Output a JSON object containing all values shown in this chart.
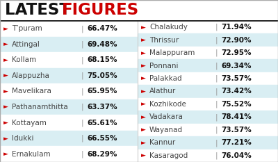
{
  "title_latest": "LATEST ",
  "title_figures": "FIGURES",
  "header_bg": "#ffffff",
  "left_col": [
    {
      "name": "T’puram",
      "value": "66.47%"
    },
    {
      "name": "Attingal",
      "value": "69.48%"
    },
    {
      "name": "Kollam",
      "value": "68.15%"
    },
    {
      "name": "Alappuzha",
      "value": "75.05%"
    },
    {
      "name": "Mavelikara",
      "value": "65.95%"
    },
    {
      "name": "Pathanamthitta",
      "value": "63.37%"
    },
    {
      "name": "Kottayam",
      "value": "65.61%"
    },
    {
      "name": "Idukki",
      "value": "66.55%"
    },
    {
      "name": "Ernakulam",
      "value": "68.29%"
    }
  ],
  "right_col": [
    {
      "name": "Chalakudy",
      "value": "71.94%"
    },
    {
      "name": "Thrissur",
      "value": "72.90%"
    },
    {
      "name": "Malappuram",
      "value": "72.95%"
    },
    {
      "name": "Ponnani",
      "value": "69.34%"
    },
    {
      "name": "Palakkad",
      "value": "73.57%"
    },
    {
      "name": "Alathur",
      "value": "73.42%"
    },
    {
      "name": "Kozhikode",
      "value": "75.52%"
    },
    {
      "name": "Vadakara",
      "value": "78.41%"
    },
    {
      "name": "Wayanad",
      "value": "73.57%"
    },
    {
      "name": "Kannur",
      "value": "77.21%"
    },
    {
      "name": "Kasaragod",
      "value": "76.04%"
    }
  ],
  "row_colors": [
    "#ffffff",
    "#d9eef3"
  ],
  "arrow_color": "#cc0000",
  "name_color": "#444444",
  "value_color": "#111111",
  "pipe_color": "#999999",
  "header_latest_color": "#111111",
  "header_figures_color": "#cc0000",
  "border_color": "#aaaaaa",
  "col_div_color": "#cccccc",
  "header_border_color": "#000000"
}
